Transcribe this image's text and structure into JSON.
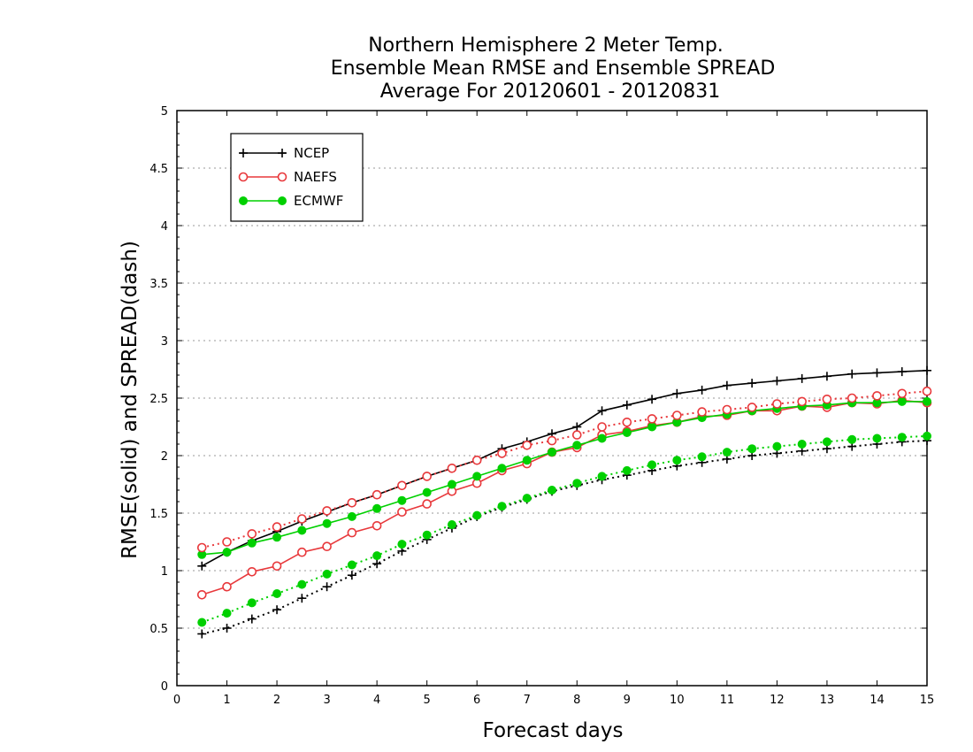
{
  "chart_data": {
    "type": "line",
    "title": [
      "Northern Hemisphere 2 Meter Temp.",
      "Ensemble Mean RMSE and Ensemble SPREAD",
      "Average For 20120601 - 20120831"
    ],
    "xlabel": "Forecast days",
    "ylabel": "RMSE(solid) and SPREAD(dash)",
    "xlim": [
      0,
      15
    ],
    "ylim": [
      0,
      5
    ],
    "xticks": [
      "0",
      "1",
      "2",
      "3",
      "4",
      "5",
      "6",
      "7",
      "8",
      "9",
      "10",
      "11",
      "12",
      "13",
      "14",
      "15"
    ],
    "yticks": [
      "0",
      "0.5",
      "1",
      "1.5",
      "2",
      "2.5",
      "3",
      "3.5",
      "4",
      "4.5",
      "5"
    ],
    "grid": "horizontal dotted",
    "legend_position": "top-left",
    "x": [
      0.5,
      1,
      1.5,
      2,
      2.5,
      3,
      3.5,
      4,
      4.5,
      5,
      5.5,
      6,
      6.5,
      7,
      7.5,
      8,
      8.5,
      9,
      9.5,
      10,
      10.5,
      11,
      11.5,
      12,
      12.5,
      13,
      13.5,
      14,
      14.5,
      15
    ],
    "series": [
      {
        "name": "NCEP",
        "style": "solid",
        "marker": "plus",
        "color": "#000000",
        "values": [
          1.04,
          1.16,
          1.26,
          1.34,
          1.43,
          1.51,
          1.59,
          1.66,
          1.74,
          1.82,
          1.89,
          1.96,
          2.06,
          2.12,
          2.19,
          2.25,
          2.39,
          2.44,
          2.49,
          2.54,
          2.57,
          2.61,
          2.63,
          2.65,
          2.67,
          2.69,
          2.71,
          2.72,
          2.73,
          2.74
        ]
      },
      {
        "name": "NAEFS",
        "style": "solid",
        "marker": "open-circle",
        "color": "#e8383b",
        "values": [
          0.79,
          0.86,
          0.99,
          1.04,
          1.16,
          1.21,
          1.33,
          1.39,
          1.51,
          1.58,
          1.69,
          1.76,
          1.87,
          1.93,
          2.03,
          2.07,
          2.18,
          2.21,
          2.26,
          2.29,
          2.34,
          2.35,
          2.39,
          2.39,
          2.43,
          2.42,
          2.46,
          2.45,
          2.48,
          2.46
        ]
      },
      {
        "name": "ECMWF",
        "style": "solid",
        "marker": "filled-circle",
        "color": "#00d000",
        "values": [
          1.14,
          1.16,
          1.24,
          1.29,
          1.35,
          1.41,
          1.47,
          1.54,
          1.61,
          1.68,
          1.75,
          1.82,
          1.89,
          1.96,
          2.03,
          2.09,
          2.15,
          2.2,
          2.25,
          2.29,
          2.33,
          2.36,
          2.39,
          2.41,
          2.43,
          2.44,
          2.46,
          2.46,
          2.47,
          2.47
        ]
      },
      {
        "name": "NCEP",
        "style": "dash",
        "marker": "plus",
        "color": "#000000",
        "values": [
          0.45,
          0.5,
          0.58,
          0.66,
          0.76,
          0.86,
          0.96,
          1.06,
          1.17,
          1.27,
          1.37,
          1.47,
          1.55,
          1.62,
          1.69,
          1.74,
          1.79,
          1.83,
          1.87,
          1.91,
          1.94,
          1.97,
          2.0,
          2.02,
          2.04,
          2.06,
          2.08,
          2.1,
          2.12,
          2.13
        ]
      },
      {
        "name": "NAEFS",
        "style": "dash",
        "marker": "open-circle",
        "color": "#e8383b",
        "values": [
          1.2,
          1.25,
          1.32,
          1.38,
          1.45,
          1.52,
          1.59,
          1.66,
          1.74,
          1.82,
          1.89,
          1.96,
          2.02,
          2.09,
          2.13,
          2.18,
          2.25,
          2.29,
          2.32,
          2.35,
          2.38,
          2.4,
          2.42,
          2.45,
          2.47,
          2.49,
          2.5,
          2.52,
          2.54,
          2.56
        ]
      },
      {
        "name": "ECMWF",
        "style": "dash",
        "marker": "filled-circle",
        "color": "#00d000",
        "values": [
          0.55,
          0.63,
          0.72,
          0.8,
          0.88,
          0.97,
          1.05,
          1.13,
          1.23,
          1.31,
          1.4,
          1.48,
          1.56,
          1.63,
          1.7,
          1.76,
          1.82,
          1.87,
          1.92,
          1.96,
          1.99,
          2.03,
          2.06,
          2.08,
          2.1,
          2.12,
          2.14,
          2.15,
          2.16,
          2.17
        ]
      }
    ],
    "legend": [
      "NCEP",
      "NAEFS",
      "ECMWF"
    ]
  }
}
